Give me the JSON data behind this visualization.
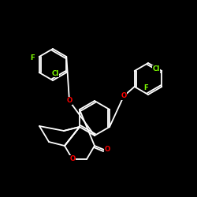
{
  "bg": "#000000",
  "bc": "#ffffff",
  "oc": "#ff0000",
  "gc": "#7fff00",
  "lw": 1.3,
  "fs": 6.5,
  "figsize": [
    2.5,
    2.5
  ],
  "dpi": 100
}
